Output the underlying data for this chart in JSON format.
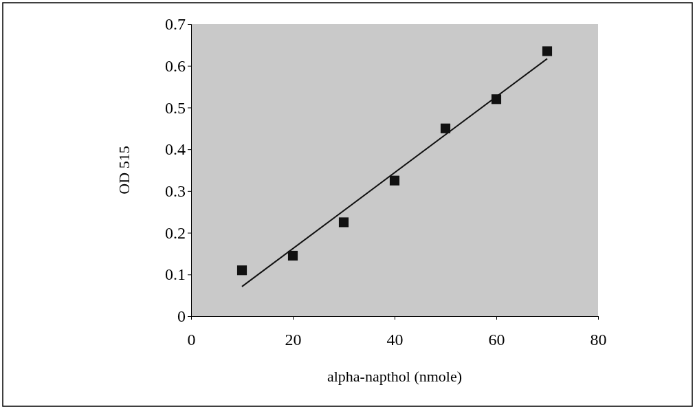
{
  "chart_data": {
    "type": "scatter",
    "xlabel": "alpha-napthol (nmole)",
    "ylabel": "OD 515",
    "x": [
      10,
      20,
      30,
      40,
      50,
      60,
      70
    ],
    "series": [
      {
        "color": "#111111",
        "marker": "square",
        "values": [
          0.11,
          0.145,
          0.225,
          0.325,
          0.45,
          0.52,
          0.635
        ]
      },
      {
        "type": "line",
        "color": "#111111",
        "marker": "none",
        "x": [
          10,
          70
        ],
        "values": [
          0.071,
          0.617
        ]
      }
    ],
    "xlim": [
      0,
      80
    ],
    "xticks": [
      0,
      20,
      40,
      60,
      80
    ],
    "ylim": [
      0,
      0.7
    ],
    "yticks": [
      0,
      0.1,
      0.2,
      0.3,
      0.4,
      0.5,
      0.6,
      0.7
    ],
    "grid": false
  }
}
